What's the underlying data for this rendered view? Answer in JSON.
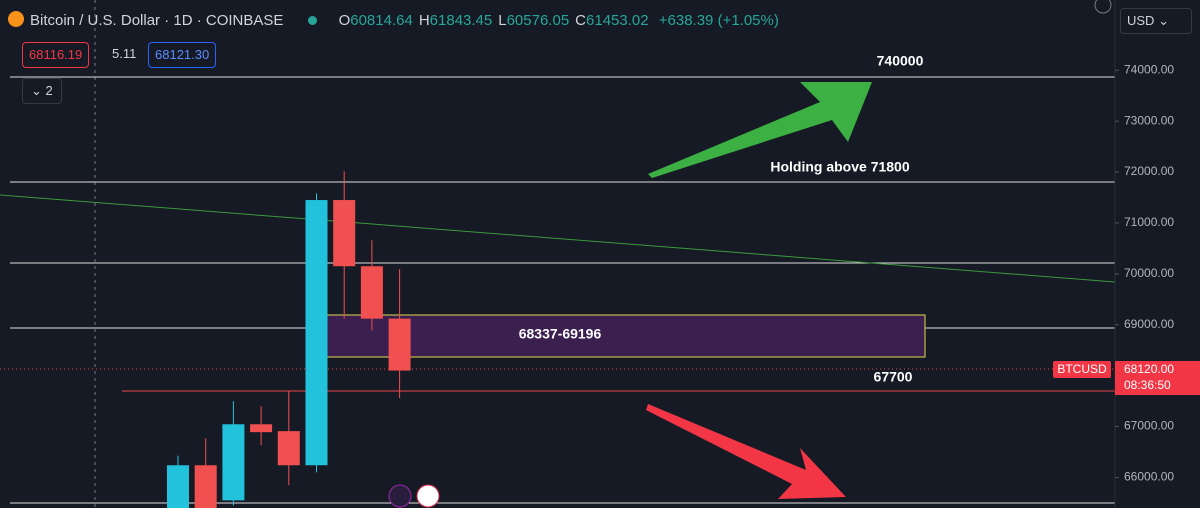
{
  "header": {
    "symbol": "Bitcoin / U.S. Dollar · 1D · COINBASE",
    "ohlc": [
      {
        "key": "O",
        "value": "60814.64"
      },
      {
        "key": "H",
        "value": "61843.45"
      },
      {
        "key": "L",
        "value": "60576.05"
      },
      {
        "key": "C",
        "value": "61453.02"
      }
    ],
    "change": "+638.39 (+1.05%)",
    "currency": "USD"
  },
  "quote": {
    "bid": "68116.19",
    "spread": "5.11",
    "ask": "68121.30",
    "indicators": "2"
  },
  "annotations": {
    "target": "740000",
    "holding": "Holding above 71800",
    "zone": "68337-69196",
    "support": "67700"
  },
  "price_label": {
    "symbol": "BTCUSD",
    "price": "68120.00",
    "countdown": "08:36:50"
  },
  "chart_data": {
    "type": "candlestick",
    "ylim": [
      65400,
      75380
    ],
    "yticks": [
      {
        "value": 66000,
        "label": "66000.00"
      },
      {
        "value": 67000,
        "label": "67000.00"
      },
      {
        "value": 68000,
        "label": "68000.00"
      },
      {
        "value": 69000,
        "label": "69000.00"
      },
      {
        "value": 70000,
        "label": "70000.00"
      },
      {
        "value": 71000,
        "label": "71000.00"
      },
      {
        "value": 72000,
        "label": "72000.00"
      },
      {
        "value": 73000,
        "label": "73000.00"
      },
      {
        "value": 74000,
        "label": "74000.00"
      }
    ],
    "open": [
      65400,
      66240,
      65550,
      67045,
      66910,
      66240,
      71450,
      70150,
      69120
    ],
    "high": [
      66430,
      66770,
      67500,
      67400,
      67690,
      71580,
      72015,
      70660,
      70090
    ],
    "low": [
      65400,
      65400,
      65450,
      66630,
      65850,
      66100,
      69120,
      68890,
      67560
    ],
    "close": [
      66240,
      65400,
      67045,
      66890,
      66240,
      71450,
      70150,
      69120,
      68100
    ],
    "up_color": "#22c1dc",
    "down_color": "#f0504f"
  }
}
